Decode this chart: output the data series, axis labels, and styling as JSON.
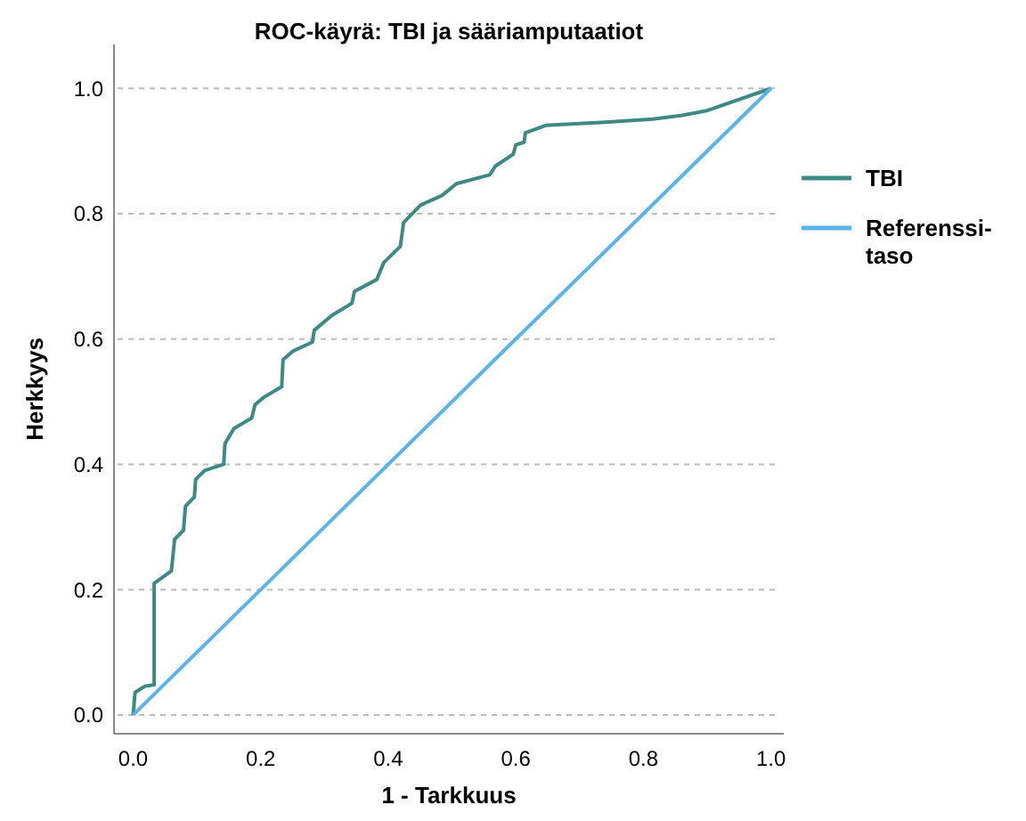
{
  "chart_data": {
    "type": "line",
    "title": "ROC-käyrä: TBI ja sääriamputaatiot",
    "xlabel": "1 - Tarkkuus",
    "ylabel": "Herkkyys",
    "xlim": [
      -0.03,
      1.02
    ],
    "ylim": [
      -0.03,
      1.07
    ],
    "xticks": [
      {
        "value": 0,
        "label": "0.0"
      },
      0.2,
      0.4,
      0.6,
      0.8,
      {
        "value": 1,
        "label": "1.0"
      }
    ],
    "yticks": [
      {
        "value": 0,
        "label": "0.0"
      },
      0.2,
      0.4,
      0.6,
      0.8,
      {
        "value": 1,
        "label": "1.0"
      }
    ],
    "grid": "y",
    "legend": "right",
    "marker": "none",
    "line_style": "solid",
    "series": [
      {
        "name": "TBI",
        "color": "#3d8a84",
        "x": [
          0,
          0.003,
          0.019,
          0.033,
          0.033,
          0.06,
          0.065,
          0.079,
          0.082,
          0.096,
          0.098,
          0.112,
          0.142,
          0.144,
          0.158,
          0.186,
          0.191,
          0.205,
          0.233,
          0.235,
          0.251,
          0.281,
          0.284,
          0.312,
          0.343,
          0.347,
          0.382,
          0.393,
          0.419,
          0.424,
          0.451,
          0.484,
          0.507,
          0.559,
          0.568,
          0.596,
          0.6,
          0.613,
          0.615,
          0.647,
          0.74,
          0.815,
          0.861,
          0.898,
          1.0
        ],
        "values": [
          0,
          0.036,
          0.046,
          0.048,
          0.21,
          0.23,
          0.28,
          0.295,
          0.333,
          0.348,
          0.376,
          0.39,
          0.4,
          0.433,
          0.457,
          0.474,
          0.495,
          0.507,
          0.524,
          0.567,
          0.581,
          0.595,
          0.614,
          0.638,
          0.657,
          0.676,
          0.695,
          0.722,
          0.748,
          0.786,
          0.814,
          0.829,
          0.848,
          0.862,
          0.876,
          0.895,
          0.91,
          0.914,
          0.929,
          0.941,
          0.946,
          0.951,
          0.957,
          0.964,
          1.0
        ]
      },
      {
        "name": "Referenssi-taso",
        "color": "#5ab4eb",
        "x": [
          0,
          1
        ],
        "values": [
          0,
          1
        ]
      }
    ]
  }
}
